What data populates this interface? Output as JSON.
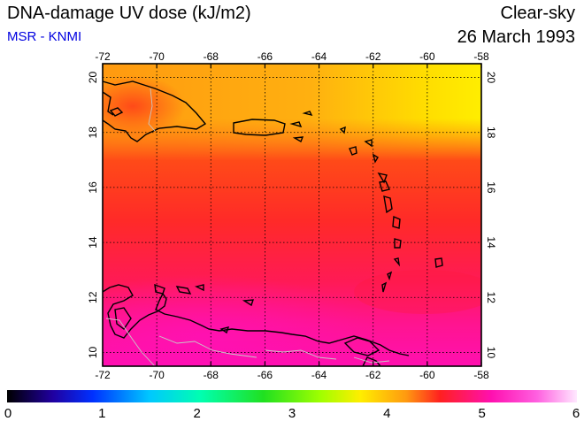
{
  "header": {
    "title": "DNA-damage UV dose (kJ/m2)",
    "subtitle": "MSR - KNMI",
    "condition": "Clear-sky",
    "date": "26 March 1993"
  },
  "map": {
    "lon_ticks": [
      "-72",
      "-70",
      "-68",
      "-66",
      "-64",
      "-62",
      "-60",
      "-58"
    ],
    "lat_ticks": [
      "10",
      "12",
      "14",
      "16",
      "18",
      "20"
    ],
    "colors": {
      "yellow": "#ffee00",
      "orange": "#ff9a10",
      "red_orange": "#ff4a18",
      "red": "#ff1f30",
      "deep_pink": "#ff1a70",
      "magenta": "#ff10b0",
      "coast": "#000000",
      "border": "#c8c8c8"
    }
  },
  "colorbar": {
    "labels": [
      "0",
      "1",
      "2",
      "3",
      "4",
      "5",
      "6"
    ],
    "min": 0,
    "max": 6
  }
}
